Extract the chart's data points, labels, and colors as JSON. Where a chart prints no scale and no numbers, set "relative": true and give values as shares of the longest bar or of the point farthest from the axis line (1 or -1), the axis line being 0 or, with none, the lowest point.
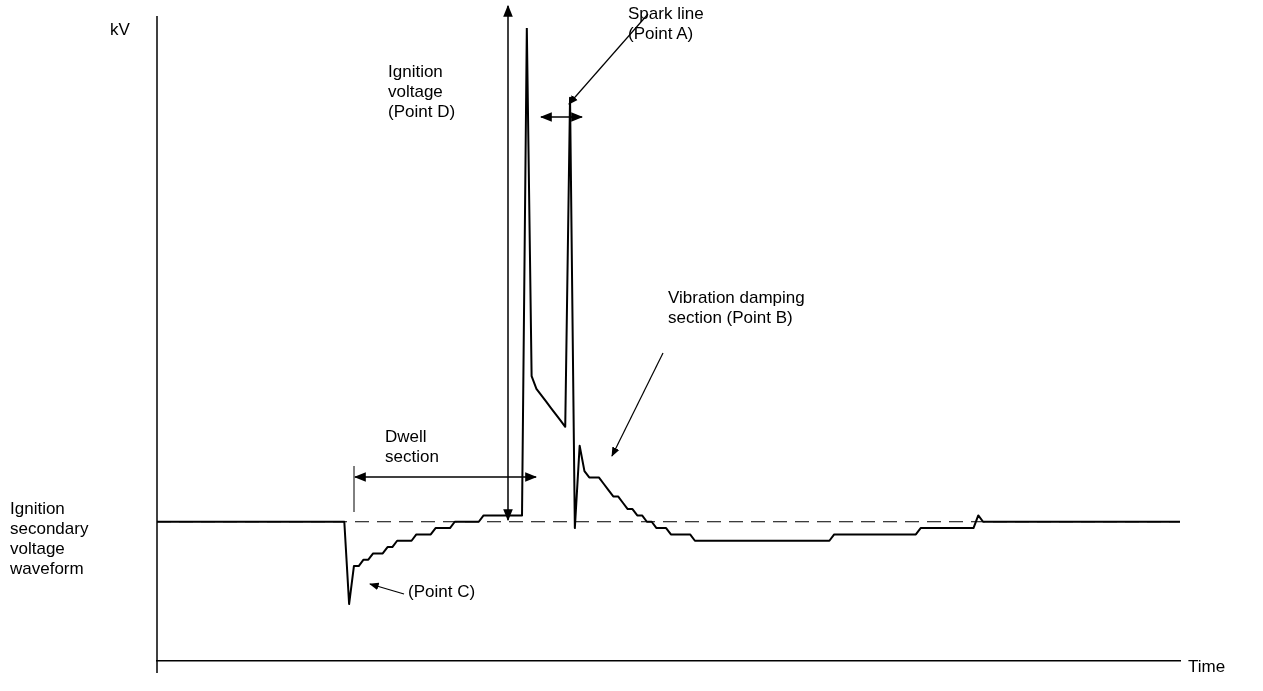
{
  "chart_data": {
    "type": "line",
    "relative": true,
    "ylabel": "kV",
    "xlabel": "Time",
    "marker": "none",
    "line_style": "solid",
    "categories": [
      null,
      null,
      null,
      null,
      null,
      null,
      null,
      null,
      null,
      null,
      null,
      null,
      null,
      null,
      null,
      null,
      null,
      null,
      null,
      null,
      null,
      null,
      null,
      null,
      null,
      null,
      null,
      null,
      null,
      null,
      null,
      null,
      null,
      null,
      null,
      null,
      null,
      null,
      null,
      null,
      null,
      null,
      null,
      null,
      null,
      null,
      null,
      null,
      null,
      null,
      null,
      null,
      null,
      null,
      null,
      null,
      null,
      null,
      null,
      null,
      null,
      null,
      null,
      null,
      null,
      null,
      null,
      null,
      null,
      null,
      null,
      null,
      null,
      null,
      null,
      null,
      null,
      null,
      null,
      null,
      null,
      null,
      null,
      null,
      null,
      null,
      null,
      null,
      null,
      null,
      null,
      null,
      null,
      null,
      null,
      null,
      null,
      null,
      null,
      null,
      null,
      null,
      null,
      null,
      null,
      null,
      null,
      null,
      null,
      null,
      null,
      null,
      null,
      null,
      null,
      null,
      null,
      null,
      null,
      null,
      null,
      null,
      null,
      null,
      null,
      null,
      null,
      null,
      null,
      null,
      null,
      null,
      null,
      null,
      null,
      null,
      null,
      null,
      null,
      null,
      null,
      null,
      null,
      null,
      null,
      null,
      null,
      null,
      null,
      null,
      null,
      null,
      null,
      null,
      null,
      null,
      null,
      null,
      null,
      null,
      null,
      null,
      null,
      null,
      null,
      null,
      null,
      null,
      null,
      null,
      null,
      null,
      null,
      null,
      null,
      null,
      null,
      null,
      null,
      null,
      null,
      null,
      null,
      null,
      null,
      null,
      null,
      null,
      null,
      null,
      null,
      null,
      null,
      null,
      null,
      null,
      null,
      null,
      null,
      null,
      null,
      null,
      null,
      null,
      null,
      null,
      null,
      null,
      null,
      null,
      null,
      null,
      null,
      null
    ],
    "series": [
      {
        "color": "#000000",
        "values": [
          0.22,
          0.22,
          0.22,
          0.22,
          0.22,
          0.22,
          0.22,
          0.22,
          0.22,
          0.22,
          0.22,
          0.22,
          0.22,
          0.22,
          0.22,
          0.22,
          0.22,
          0.22,
          0.22,
          0.22,
          0.22,
          0.22,
          0.22,
          0.22,
          0.22,
          0.22,
          0.22,
          0.22,
          0.22,
          0.22,
          0.22,
          0.22,
          0.22,
          0.22,
          0.22,
          0.22,
          0.22,
          0.22,
          0.22,
          0.22,
          0.09,
          0.15,
          0.15,
          0.16,
          0.16,
          0.17,
          0.17,
          0.17,
          0.18,
          0.18,
          0.19,
          0.19,
          0.19,
          0.19,
          0.2,
          0.2,
          0.2,
          0.2,
          0.21,
          0.21,
          0.21,
          0.21,
          0.22,
          0.22,
          0.22,
          0.22,
          0.22,
          0.22,
          0.23,
          0.23,
          0.23,
          0.23,
          0.23,
          0.23,
          0.23,
          0.23,
          0.23,
          1,
          0.45,
          0.43,
          0.42,
          0.41,
          0.4,
          0.39,
          0.38,
          0.37,
          0.89,
          0.21,
          0.34,
          0.3,
          0.29,
          0.29,
          0.29,
          0.28,
          0.27,
          0.26,
          0.26,
          0.25,
          0.24,
          0.24,
          0.23,
          0.23,
          0.22,
          0.22,
          0.21,
          0.21,
          0.21,
          0.2,
          0.2,
          0.2,
          0.2,
          0.2,
          0.19,
          0.19,
          0.19,
          0.19,
          0.19,
          0.19,
          0.19,
          0.19,
          0.19,
          0.19,
          0.19,
          0.19,
          0.19,
          0.19,
          0.19,
          0.19,
          0.19,
          0.19,
          0.19,
          0.19,
          0.19,
          0.19,
          0.19,
          0.19,
          0.19,
          0.19,
          0.19,
          0.19,
          0.19,
          0.2,
          0.2,
          0.2,
          0.2,
          0.2,
          0.2,
          0.2,
          0.2,
          0.2,
          0.2,
          0.2,
          0.2,
          0.2,
          0.2,
          0.2,
          0.2,
          0.2,
          0.2,
          0.21,
          0.21,
          0.21,
          0.21,
          0.21,
          0.21,
          0.21,
          0.21,
          0.21,
          0.21,
          0.21,
          0.21,
          0.23,
          0.22,
          0.22,
          0.22,
          0.22,
          0.22,
          0.22,
          0.22,
          0.22,
          0.22,
          0.22,
          0.22,
          0.22,
          0.22,
          0.22,
          0.22,
          0.22,
          0.22,
          0.22,
          0.22,
          0.22,
          0.22,
          0.22,
          0.22,
          0.22,
          0.22,
          0.22,
          0.22,
          0.22,
          0.22,
          0.22,
          0.22,
          0.22,
          0.22,
          0.22,
          0.22,
          0.22,
          0.22,
          0.22,
          0.22,
          0.22,
          0.22,
          0.22
        ]
      }
    ],
    "ref_lines": [
      {
        "axis": "y",
        "value": 0.22,
        "line_style": "dashed",
        "color": "#000000"
      }
    ],
    "annotations": [
      "Ignition voltage (Point D)",
      "Spark line (Point A)",
      "Vibration damping section (Point B)",
      "Dwell section",
      "(Point C)",
      "Ignition secondary voltage waveform"
    ]
  }
}
